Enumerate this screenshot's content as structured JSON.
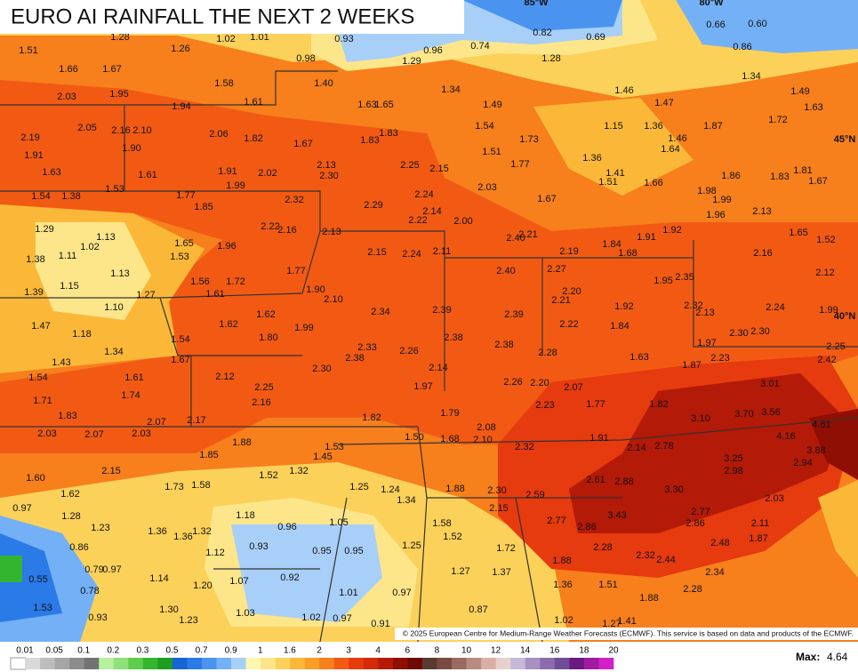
{
  "title": "EURO AI RAINFALL THE NEXT 2 WEEKS",
  "map_labels": {
    "latitude": [
      "45°N",
      "40°N"
    ],
    "longitude": [
      "85°W",
      "80°W"
    ]
  },
  "rainfall_values": [
    "1.51",
    "1.28",
    "1.26",
    "1.02",
    "1.01",
    "0.93",
    "0.96",
    "0.74",
    "0.82",
    "0.69",
    "0.66",
    "0.60",
    "0.86",
    "1.66",
    "1.67",
    "0.98",
    "1.29",
    "1.28",
    "1.34",
    "1.58",
    "1.40",
    "1.34",
    "1.46",
    "1.49",
    "2.03",
    "1.95",
    "1.94",
    "1.61",
    "1.63",
    "1.65",
    "1.49",
    "1.47",
    "1.63",
    "1.72",
    "2.05",
    "2.16",
    "2.10",
    "1.54",
    "1.15",
    "1.36",
    "1.87",
    "2.19",
    "2.06",
    "1.82",
    "1.67",
    "1.83",
    "1.83",
    "1.73",
    "1.46",
    "1.64",
    "1.91",
    "1.90",
    "1.51",
    "1.77",
    "1.36",
    "1.63",
    "1.61",
    "1.91",
    "2.02",
    "2.13",
    "2.30",
    "2.25",
    "2.15",
    "1.41",
    "1.51",
    "1.66",
    "1.86",
    "1.83",
    "1.81",
    "1.67",
    "1.54",
    "1.38",
    "1.53",
    "1.77",
    "1.99",
    "2.03",
    "1.98",
    "1.99",
    "1.85",
    "2.32",
    "2.29",
    "2.24",
    "2.14",
    "2.22",
    "1.67",
    "1.96",
    "2.13",
    "1.29",
    "1.13",
    "1.02",
    "1.96",
    "2.22",
    "2.16",
    "2.13",
    "2.00",
    "2.40",
    "2.21",
    "1.84",
    "1.91",
    "1.92",
    "1.65",
    "1.52",
    "1.38",
    "1.11",
    "1.65",
    "1.53",
    "2.15",
    "2.24",
    "2.11",
    "2.19",
    "1.68",
    "2.16",
    "1.13",
    "1.56",
    "1.72",
    "1.77",
    "2.40",
    "2.27",
    "2.35",
    "2.12",
    "1.39",
    "1.15",
    "1.27",
    "1.61",
    "1.90",
    "2.10",
    "2.20",
    "2.21",
    "1.95",
    "2.32",
    "2.13",
    "2.24",
    "1.99",
    "1.10",
    "1.62",
    "2.34",
    "2.39",
    "2.39",
    "1.92",
    "2.22",
    "1.84",
    "1.47",
    "1.18",
    "1.62",
    "1.80",
    "1.99",
    "2.38",
    "2.30",
    "2.30",
    "1.97",
    "1.34",
    "1.54",
    "2.33",
    "2.26",
    "2.38",
    "2.28",
    "2.25",
    "2.42",
    "1.43",
    "1.67",
    "2.38",
    "2.30",
    "2.14",
    "1.63",
    "1.87",
    "2.23",
    "1.54",
    "1.61",
    "2.12",
    "2.25",
    "2.26",
    "2.20",
    "2.07",
    "3.01",
    "1.74",
    "1.97",
    "2.16",
    "2.23",
    "1.77",
    "1.82",
    "1.71",
    "1.83",
    "2.07",
    "2.17",
    "1.82",
    "1.79",
    "2.08",
    "3.10",
    "3.70",
    "3.56",
    "4.61",
    "2.03",
    "2.07",
    "2.03",
    "1.50",
    "1.68",
    "2.10",
    "1.91",
    "4.16",
    "1.88",
    "1.53",
    "2.32",
    "2.14",
    "2.78",
    "3.88",
    "1.85",
    "1.45",
    "3.25",
    "2.94",
    "2.15",
    "1.52",
    "1.32",
    "2.98",
    "1.60",
    "1.73",
    "1.58",
    "1.25",
    "1.24",
    "2.61",
    "2.88",
    "3.30",
    "1.62",
    "1.88",
    "2.30",
    "2.59",
    "1.34",
    "2.03",
    "0.97",
    "1.28",
    "1.18",
    "2.15",
    "2.77",
    "1.05",
    "1.58",
    "2.77",
    "3.43",
    "2.86",
    "2.86",
    "2.11",
    "1.23",
    "1.36",
    "1.36",
    "1.32",
    "0.96",
    "1.52",
    "0.86",
    "0.93",
    "1.12",
    "0.95",
    "0.95",
    "1.25",
    "1.72",
    "2.28",
    "2.48",
    "1.87",
    "0.79",
    "0.97",
    "0.55",
    "1.14",
    "0.92",
    "1.27",
    "1.37",
    "1.88",
    "2.32",
    "2.44",
    "2.34",
    "1.07",
    "1.20",
    "0.78",
    "1.01",
    "0.97",
    "1.36",
    "1.51",
    "2.28",
    "1.53",
    "1.30",
    "1.03",
    "0.87",
    "1.88",
    "0.93",
    "1.23",
    "1.02",
    "0.97",
    "0.91",
    "1.02",
    "1.27",
    "1.41"
  ],
  "credit": "© 2025 European Centre for Medium-Range Weather Forecasts (ECMWF). This service is based on data and products of the ECMWF.",
  "legend": {
    "ticks": [
      "0.01",
      "0.05",
      "0.1",
      "0.2",
      "0.3",
      "0.5",
      "0.7",
      "0.9",
      "1",
      "1.6",
      "2",
      "3",
      "4",
      "6",
      "8",
      "10",
      "12",
      "14",
      "16",
      "18",
      "20"
    ],
    "colors": [
      "#ffffff",
      "#d9d9d9",
      "#bdbdbd",
      "#a6a6a6",
      "#8c8c8c",
      "#737373",
      "#b7f0a0",
      "#8fe07a",
      "#5fcc4a",
      "#34b52f",
      "#1e9e1e",
      "#1764d6",
      "#2a7ae8",
      "#4a94f0",
      "#74b0f5",
      "#a8cff8",
      "#fff6b0",
      "#fde68a",
      "#fcd15a",
      "#fbb838",
      "#f99d26",
      "#f77f1c",
      "#f25a14",
      "#e63a0f",
      "#d42a0a",
      "#b31a07",
      "#8f0f05",
      "#6e0a04",
      "#5a3a30",
      "#7a4b40",
      "#9a6a60",
      "#b98a80",
      "#d9b0a8",
      "#e8d0cc",
      "#c8b8d8",
      "#a890c0",
      "#8c6cac",
      "#6e4c96",
      "#6a1a80",
      "#a01aa0",
      "#d020c8"
    ]
  },
  "max": {
    "label": "Max:",
    "value": "4.64"
  }
}
